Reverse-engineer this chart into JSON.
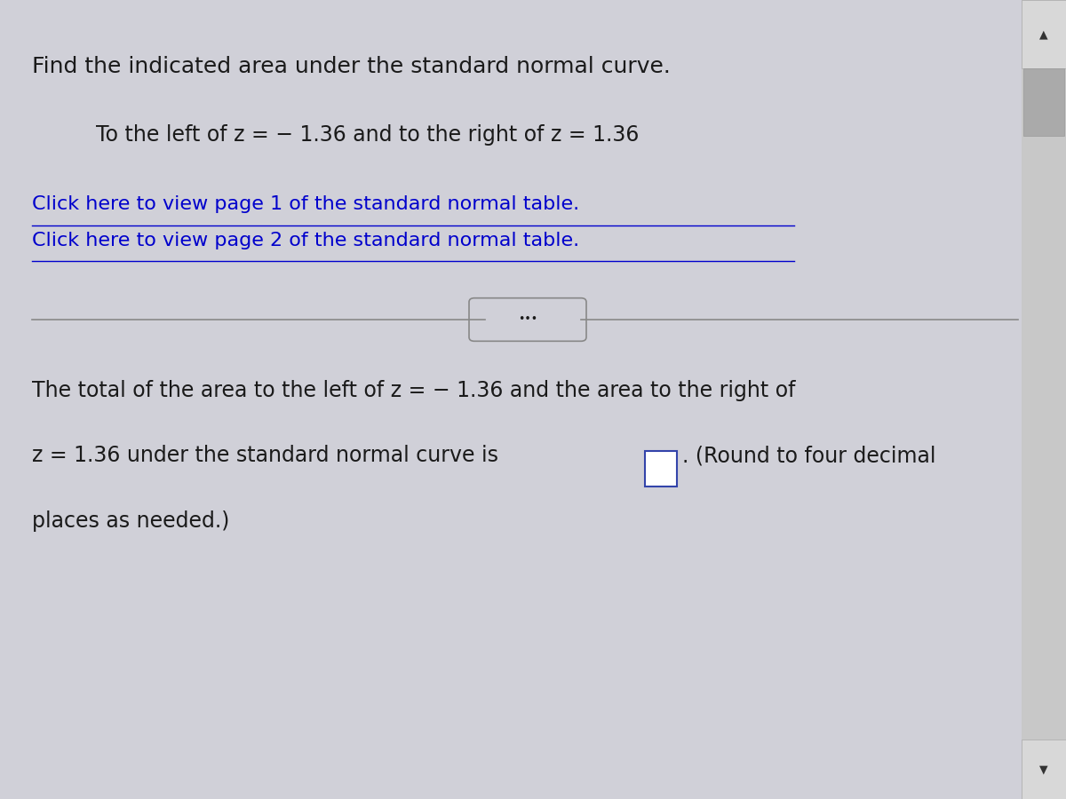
{
  "background_color": "#d0d0d8",
  "title_text": "Find the indicated area under the standard normal curve.",
  "subtitle_text": "To the left of z = − 1.36 and to the right of z = 1.36",
  "link1_text": "Click here to view page 1 of the standard normal table.",
  "link2_text": "Click here to view page 2 of the standard normal table.",
  "link_color": "#0000cc",
  "body_line1": "The total of the area to the left of z = − 1.36 and the area to the right of",
  "body_line2": "z = 1.36 under the standard normal curve is",
  "body_line3": ". (Round to four decimal",
  "body_line4": "places as needed.)",
  "text_color": "#1a1a1a",
  "font_size_title": 18,
  "font_size_subtitle": 17,
  "font_size_links": 16,
  "font_size_body": 17
}
